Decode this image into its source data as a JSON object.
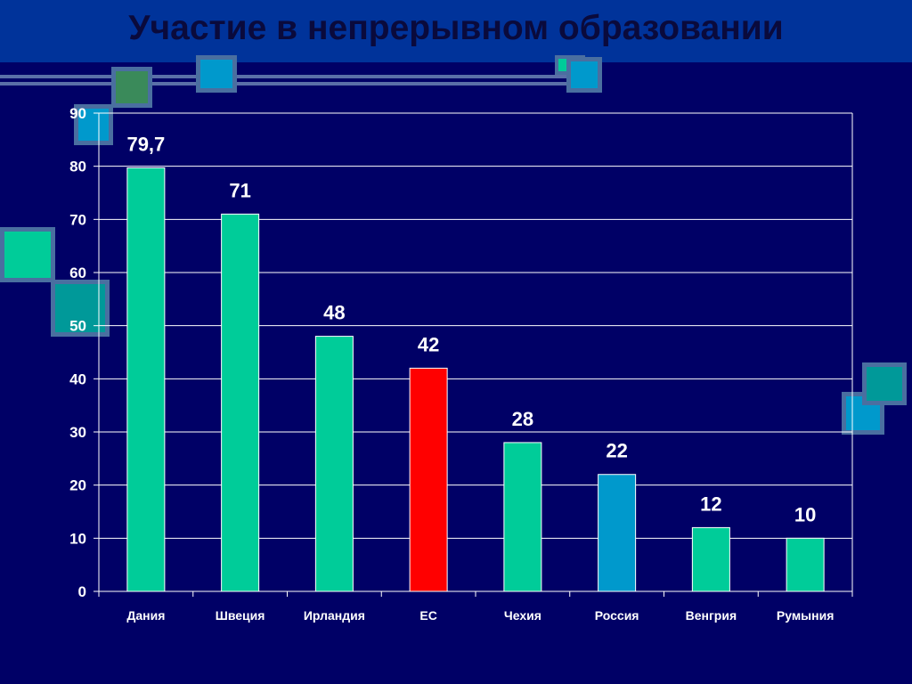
{
  "slide": {
    "title": "Участие в непрерывном образовании"
  },
  "colors": {
    "background": "#000066",
    "title_band": "#00339a",
    "bar_default": "#00cc99",
    "bar_eu": "#ff0000",
    "bar_russia": "#0099cc",
    "gridline": "#ffffff"
  },
  "chart_data": {
    "type": "bar",
    "title": "",
    "xlabel": "",
    "ylabel": "",
    "categories": [
      "Дания",
      "Швеция",
      "Ирландия",
      "ЕС",
      "Чехия",
      "Россия",
      "Венгрия",
      "Румыния"
    ],
    "values": [
      79.7,
      71,
      48,
      42,
      28,
      22,
      12,
      10
    ],
    "value_labels": [
      "79,7",
      "71",
      "48",
      "42",
      "28",
      "22",
      "12",
      "10"
    ],
    "bar_colors": [
      "#00cc99",
      "#00cc99",
      "#00cc99",
      "#ff0000",
      "#00cc99",
      "#0099cc",
      "#00cc99",
      "#00cc99"
    ],
    "ylim": [
      0,
      90
    ],
    "yticks": [
      0,
      10,
      20,
      30,
      40,
      50,
      60,
      70,
      80,
      90
    ],
    "grid": true,
    "legend": "none"
  }
}
